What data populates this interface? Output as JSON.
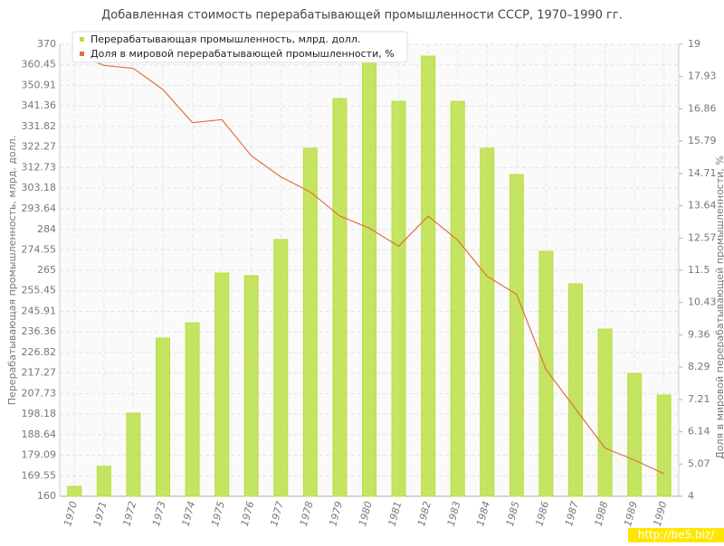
{
  "chart_data": {
    "type": "bar-line",
    "title": "Добавленная стоимость перерабатывающей промышленности СССР, 1970–1990 гг.",
    "y_label": "Перерабатывающая промышленность, млрд. долл.",
    "y2_label": "Доля в мировой перерабатывающей промышленности, %",
    "watermark": "http://be5.biz/",
    "legend": "top-left",
    "grid": true,
    "categories": [
      "1970",
      "1971",
      "1972",
      "1973",
      "1974",
      "1975",
      "1976",
      "1977",
      "1978",
      "1979",
      "1980",
      "1981",
      "1982",
      "1983",
      "1984",
      "1985",
      "1986",
      "1987",
      "1988",
      "1989",
      "1990"
    ],
    "series": [
      {
        "name": "Перерабатывающая промышленность, млрд. долл.",
        "color": "#b8df3c",
        "kind": "bar",
        "values": [
          164.6,
          173.9,
          198.6,
          233.5,
          240.6,
          263.7,
          262.5,
          279.3,
          321.7,
          344.8,
          362.4,
          343.5,
          364.5,
          343.5,
          321.7,
          309.5,
          273.8,
          258.7,
          237.7,
          217.1,
          207
        ]
      },
      {
        "name": "Доля в мировой перерабатывающей промышленности, %",
        "color": "#e07040",
        "kind": "line",
        "axis": "y2",
        "values": [
          18.7,
          18.3,
          18.2,
          17.5,
          16.4,
          16.5,
          15.3,
          14.6,
          14.1,
          13.3,
          12.9,
          12.3,
          13.3,
          12.5,
          11.3,
          10.7,
          8.2,
          6.9,
          5.6,
          5.2,
          4.75
        ]
      }
    ],
    "ylim": [
      160,
      370
    ],
    "yticks": [
      160,
      169.55,
      179.09,
      188.64,
      198.18,
      207.73,
      217.27,
      226.82,
      236.36,
      245.91,
      255.45,
      265,
      274.55,
      284,
      293.64,
      303.18,
      312.73,
      322.27,
      331.82,
      341.36,
      350.91,
      360.45,
      370
    ],
    "y2lim": [
      4,
      19
    ],
    "y2ticks": [
      4,
      5.07,
      6.14,
      7.21,
      8.29,
      9.36,
      10.43,
      11.5,
      12.57,
      13.64,
      14.71,
      15.79,
      16.86,
      17.93,
      19
    ]
  }
}
